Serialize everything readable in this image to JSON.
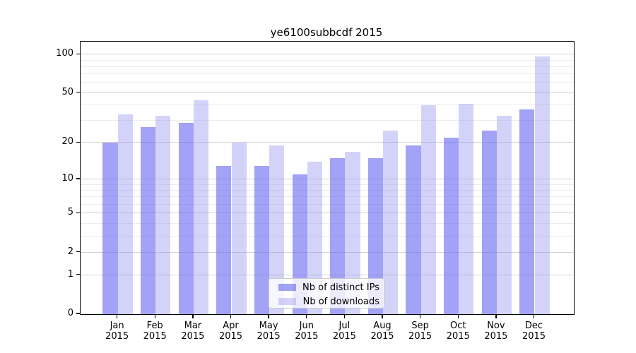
{
  "figure": {
    "title": "ye6100subbcdf 2015"
  },
  "chart_data": {
    "type": "bar",
    "title": "ye6100subbcdf 2015",
    "categories": [
      "Jan",
      "Feb",
      "Mar",
      "Apr",
      "May",
      "Jun",
      "Jul",
      "Aug",
      "Sep",
      "Oct",
      "Nov",
      "Dec"
    ],
    "category_year": "2015",
    "series": [
      {
        "name": "Nb of distinct IPs",
        "color": "rgba(95,95,240,0.58)",
        "values": [
          20,
          27,
          29,
          13,
          13,
          11,
          15,
          15,
          19,
          22,
          25,
          37
        ]
      },
      {
        "name": "Nb of downloads",
        "color": "rgba(150,150,242,0.42)",
        "values": [
          34,
          33,
          44,
          20,
          19,
          14,
          17,
          25,
          40,
          41,
          33,
          97
        ]
      }
    ],
    "xlabel": "",
    "ylabel": "",
    "yscale": "log1p",
    "ylim": [
      0,
      126
    ],
    "y_major_ticks": [
      0,
      1,
      2,
      5,
      10,
      20,
      50,
      100
    ],
    "y_minor_gridlines": [
      3,
      4,
      6,
      7,
      8,
      9,
      30,
      40,
      60,
      70,
      80,
      90
    ],
    "grid": "horizontal major and minor",
    "legend_position": "inside lower center"
  },
  "colors": {
    "background": "#ffffff",
    "axis": "#000000",
    "major_grid": "#d3d3d3",
    "minor_grid": "#ececec",
    "legend_border": "#cccccc",
    "bar_distinct_ips": "rgba(95,95,240,0.58)",
    "bar_downloads": "rgba(150,150,242,0.42)"
  }
}
